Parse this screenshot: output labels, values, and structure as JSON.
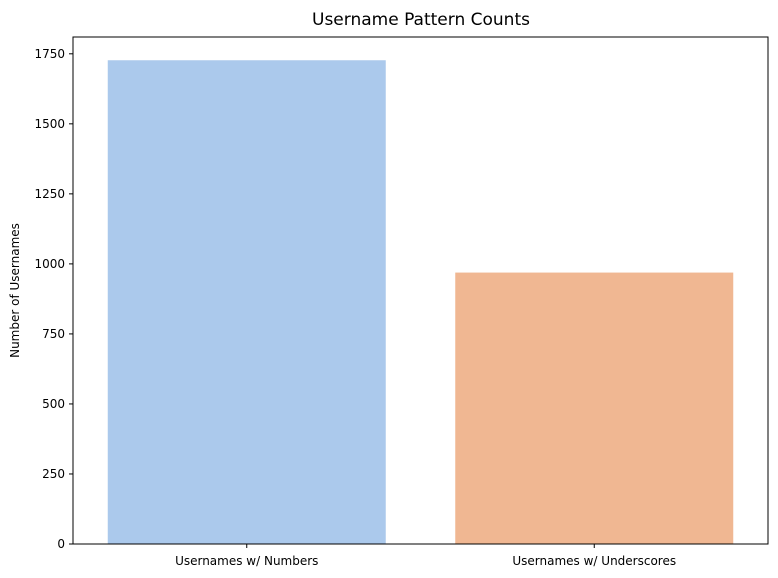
{
  "chart_data": {
    "type": "bar",
    "title": "Username Pattern Counts",
    "xlabel": "",
    "ylabel": "Number of Usernames",
    "categories": [
      "Usernames w/ Numbers",
      "Usernames w/ Underscores"
    ],
    "values": [
      1727,
      969
    ],
    "ylim": [
      0,
      1810
    ],
    "yticks": [
      0,
      250,
      500,
      750,
      1000,
      1250,
      1500,
      1750
    ],
    "colors": [
      "#abc9ec",
      "#f0b792"
    ],
    "grid": false,
    "legend": "none"
  }
}
